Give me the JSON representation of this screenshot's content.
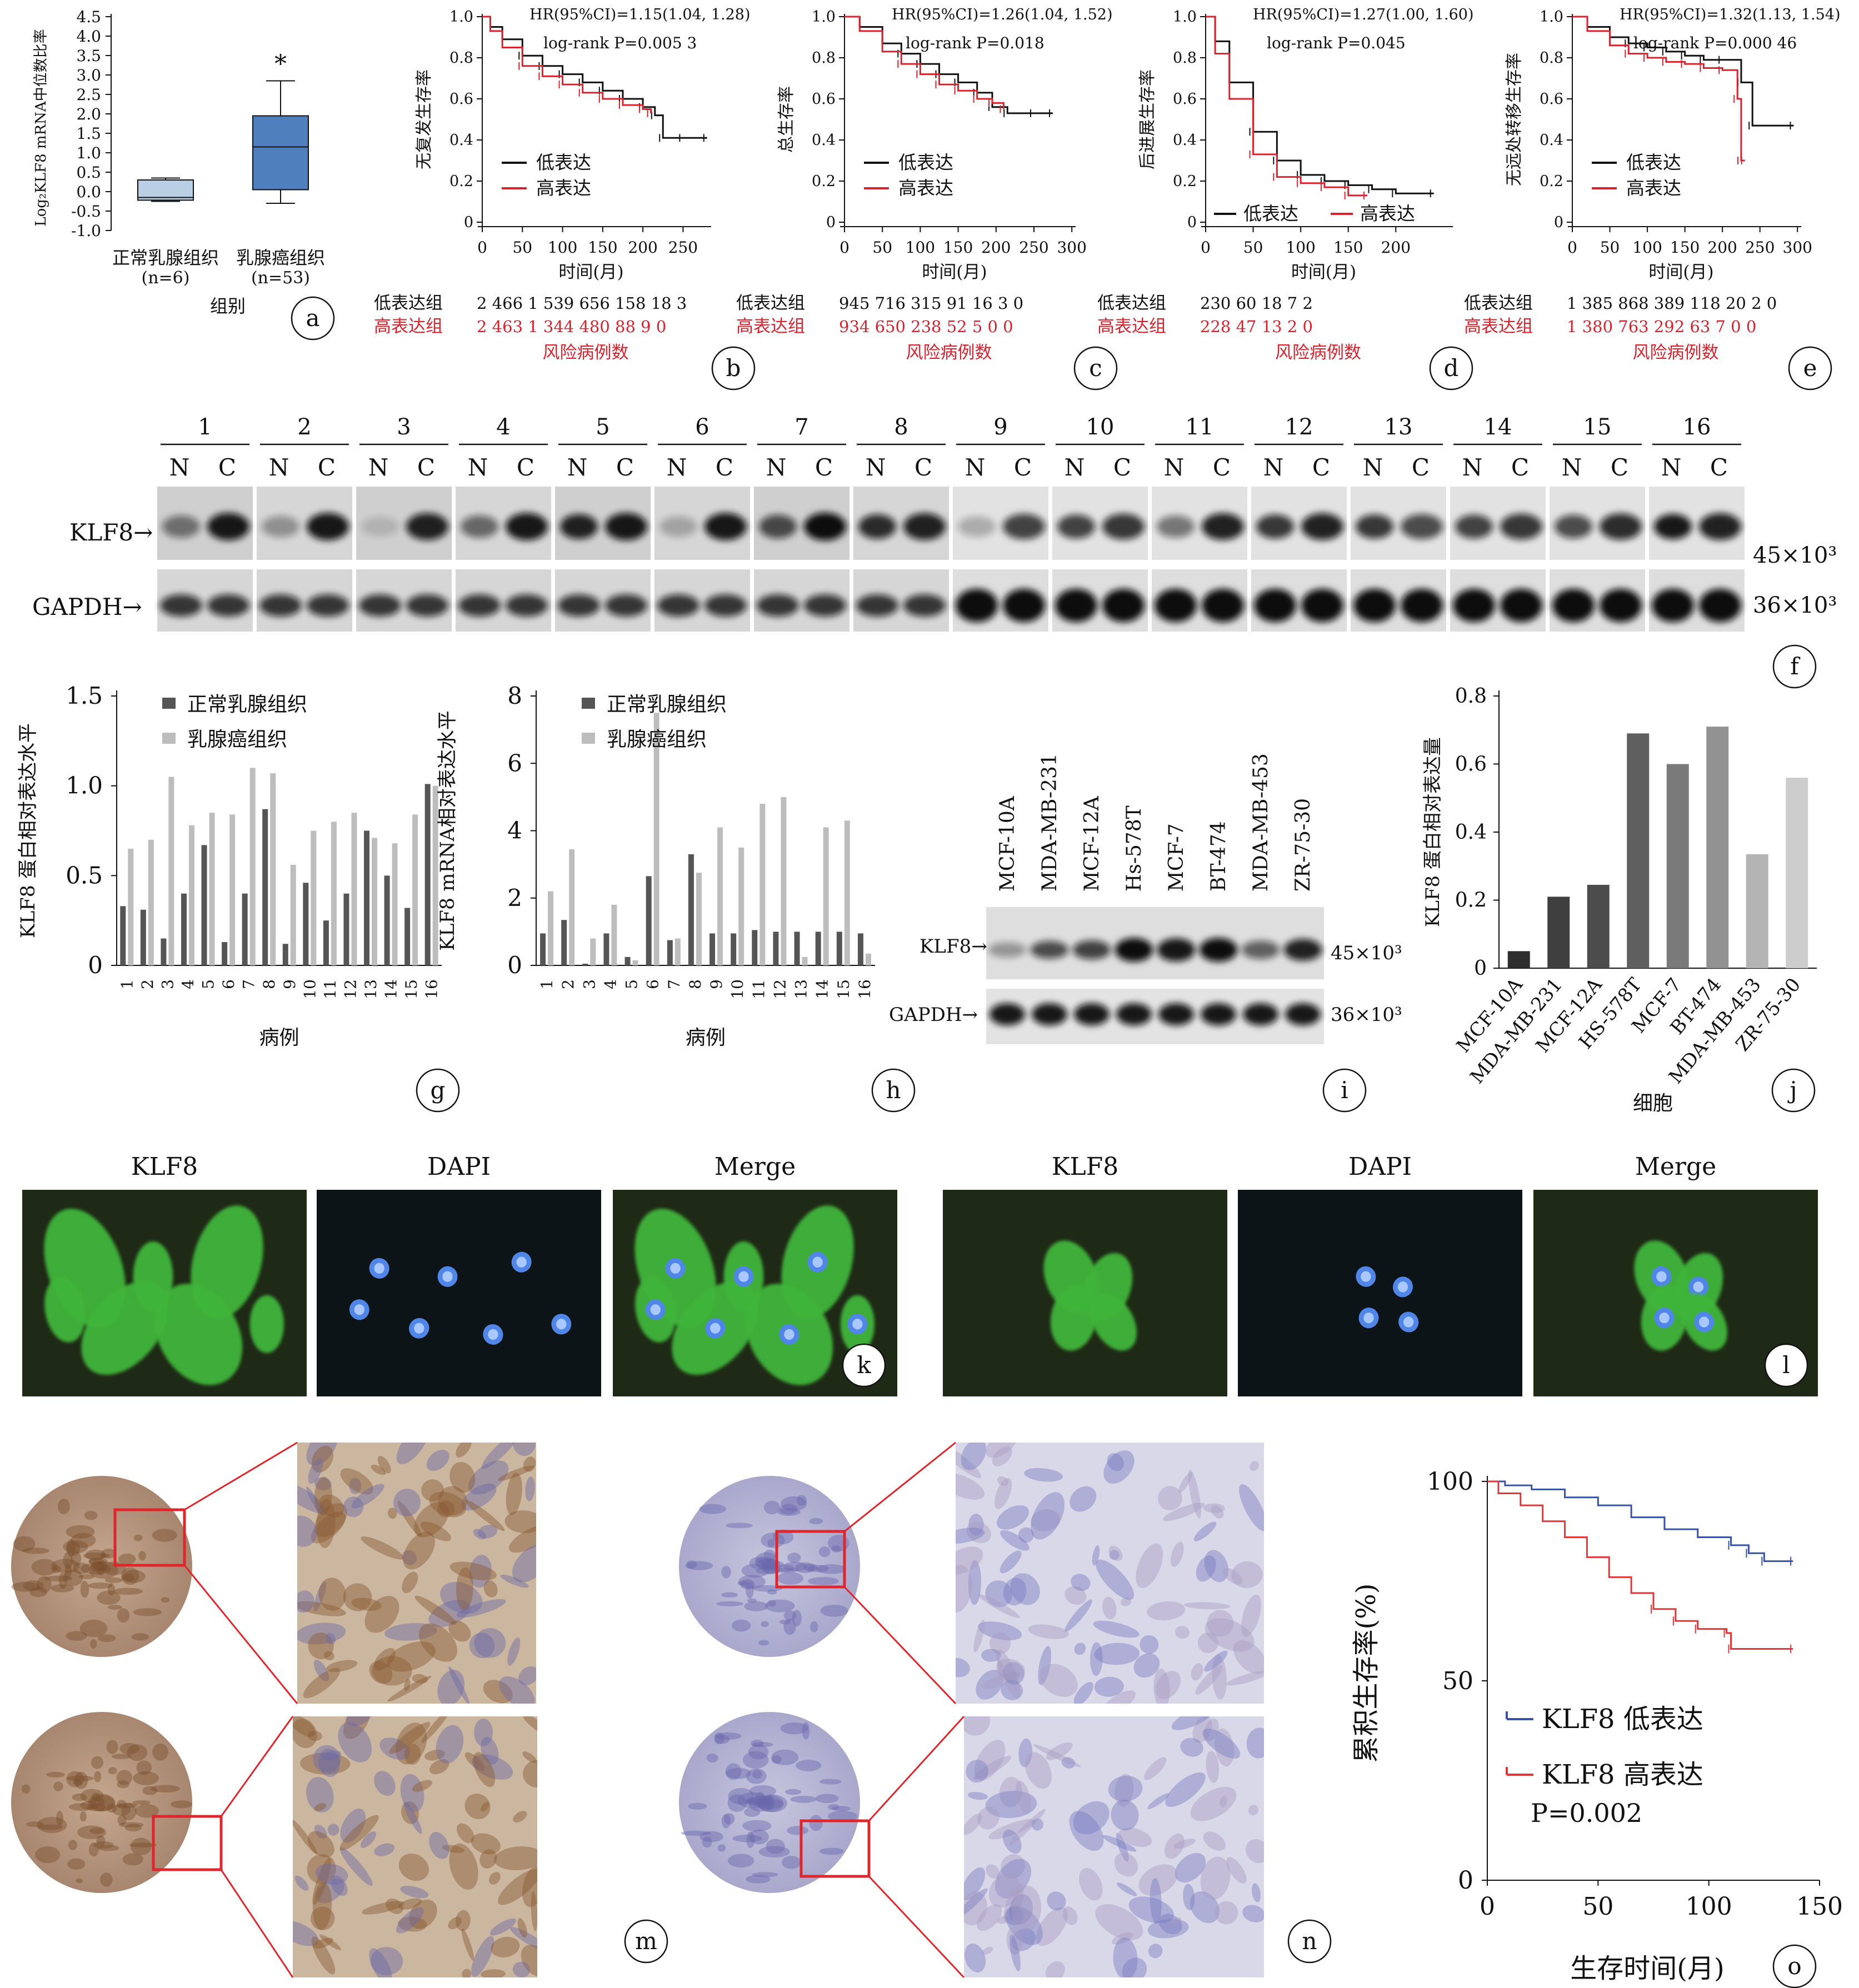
{
  "chart_data": [
    {
      "panel": "a",
      "type": "box",
      "ylabel": "Log₂KLF8 mRNA中位数比率",
      "xlabel": "组别",
      "yticks": [
        "4.5",
        "4.0",
        "3.5",
        "3.0",
        "2.5",
        "2.0",
        "1.5",
        "1.0",
        "0.5",
        "0.0",
        "-0.5",
        "-1.0"
      ],
      "ylim": [
        -1.0,
        4.5
      ],
      "significance": "*",
      "categories": [
        {
          "label": "正常乳腺组织",
          "n": "(n=6)",
          "min": -0.25,
          "q1": -0.22,
          "median": -0.15,
          "q3": 0.3,
          "max": 0.35,
          "color": "#b9cfe4"
        },
        {
          "label": "乳腺癌组织",
          "n": "(n=53)",
          "min": -0.3,
          "q1": 0.05,
          "median": 1.15,
          "q3": 1.95,
          "max": 2.85,
          "color": "#4f80bd"
        }
      ]
    },
    {
      "panel": "b",
      "type": "line",
      "ylabel": "无复发生存率",
      "xlabel": "时间(月)",
      "hr": "HR(95%CI)=1.15(1.04, 1.28)",
      "logrank": "log-rank P=0.005 3",
      "xticks": [
        "0",
        "50",
        "100",
        "150",
        "200",
        "250"
      ],
      "yticks": [
        "0",
        "0.2",
        "0.4",
        "0.6",
        "0.8",
        "1.0"
      ],
      "series": [
        {
          "name": "低表达",
          "color": "#111111",
          "x": [
            0,
            10,
            25,
            50,
            75,
            100,
            125,
            150,
            175,
            200,
            215,
            225,
            250,
            280
          ],
          "y": [
            1.0,
            0.95,
            0.89,
            0.81,
            0.76,
            0.72,
            0.68,
            0.64,
            0.6,
            0.56,
            0.52,
            0.41,
            0.41,
            0.41
          ]
        },
        {
          "name": "高表达",
          "color": "#d7232e",
          "x": [
            0,
            10,
            25,
            50,
            75,
            100,
            125,
            150,
            175,
            200,
            210
          ],
          "y": [
            1.0,
            0.93,
            0.85,
            0.76,
            0.71,
            0.67,
            0.63,
            0.6,
            0.57,
            0.55,
            0.53
          ]
        }
      ],
      "risk_label": "风险病例数",
      "risk_rows": [
        {
          "name": "低表达组",
          "values": "2 466  1 539 656  158  18  3"
        },
        {
          "name": "高表达组",
          "values": "2 463  1 344 480  88  9  0"
        }
      ]
    },
    {
      "panel": "c",
      "type": "line",
      "ylabel": "总生存率",
      "xlabel": "时间(月)",
      "hr": "HR(95%CI)=1.26(1.04, 1.52)",
      "logrank": "log-rank P=0.018",
      "xticks": [
        "0",
        "50",
        "100",
        "150",
        "200",
        "250",
        "300"
      ],
      "yticks": [
        "0",
        "0.2",
        "0.4",
        "0.6",
        "0.8",
        "1.0"
      ],
      "series": [
        {
          "name": "低表达",
          "color": "#111111",
          "x": [
            0,
            20,
            50,
            75,
            100,
            125,
            150,
            175,
            195,
            215,
            250,
            275
          ],
          "y": [
            1.0,
            0.95,
            0.87,
            0.82,
            0.77,
            0.72,
            0.68,
            0.63,
            0.56,
            0.53,
            0.53,
            0.53
          ]
        },
        {
          "name": "高表达",
          "color": "#d7232e",
          "x": [
            0,
            20,
            50,
            75,
            100,
            125,
            150,
            175,
            195,
            210
          ],
          "y": [
            1.0,
            0.93,
            0.83,
            0.77,
            0.72,
            0.67,
            0.64,
            0.6,
            0.58,
            0.55
          ]
        }
      ],
      "risk_label": "风险病例数",
      "risk_rows": [
        {
          "name": "低表达组",
          "values": "945  716  315  91  16  3  0"
        },
        {
          "name": "高表达组",
          "values": "934  650  238  52  5  0  0"
        }
      ]
    },
    {
      "panel": "d",
      "type": "line",
      "ylabel": "后进展生存率",
      "xlabel": "时间(月)",
      "hr": "HR(95%CI)=1.27(1.00, 1.60)",
      "logrank": "log-rank P=0.045",
      "xticks": [
        "0",
        "50",
        "100",
        "150",
        "200"
      ],
      "yticks": [
        "0",
        "0.2",
        "0.4",
        "0.6",
        "0.8",
        "1.0"
      ],
      "series": [
        {
          "name": "低表达",
          "color": "#111111",
          "x": [
            0,
            10,
            25,
            50,
            75,
            100,
            125,
            150,
            175,
            200,
            240
          ],
          "y": [
            1.0,
            0.88,
            0.68,
            0.44,
            0.3,
            0.23,
            0.2,
            0.18,
            0.16,
            0.14,
            0.14
          ]
        },
        {
          "name": "高表达",
          "color": "#d7232e",
          "x": [
            0,
            10,
            25,
            50,
            75,
            100,
            125,
            150,
            170
          ],
          "y": [
            1.0,
            0.82,
            0.6,
            0.33,
            0.22,
            0.19,
            0.17,
            0.13,
            0.13
          ]
        }
      ],
      "risk_label": "风险病例数",
      "risk_rows": [
        {
          "name": "低表达组",
          "values": "230  60  18  7  2"
        },
        {
          "name": "高表达组",
          "values": "228  47  13  2  0"
        }
      ]
    },
    {
      "panel": "e",
      "type": "line",
      "ylabel": "无远处转移生存率",
      "xlabel": "时间(月)",
      "hr": "HR(95%CI)=1.32(1.13, 1.54)",
      "logrank": "log-rank P=0.000 46",
      "xticks": [
        "0",
        "50",
        "100",
        "150",
        "200",
        "250",
        "300"
      ],
      "yticks": [
        "0",
        "0.2",
        "0.4",
        "0.6",
        "0.8",
        "1.0"
      ],
      "series": [
        {
          "name": "低表达",
          "color": "#111111",
          "x": [
            0,
            20,
            50,
            75,
            100,
            125,
            150,
            175,
            200,
            225,
            240,
            295
          ],
          "y": [
            1.0,
            0.95,
            0.9,
            0.87,
            0.85,
            0.83,
            0.81,
            0.79,
            0.79,
            0.68,
            0.47,
            0.47
          ]
        },
        {
          "name": "高表达",
          "color": "#d7232e",
          "x": [
            0,
            20,
            50,
            75,
            100,
            125,
            150,
            175,
            200,
            220,
            225,
            230
          ],
          "y": [
            1.0,
            0.93,
            0.86,
            0.82,
            0.8,
            0.78,
            0.77,
            0.75,
            0.74,
            0.6,
            0.3,
            0.3
          ]
        }
      ],
      "risk_label": "风险病例数",
      "risk_rows": [
        {
          "name": "低表达组",
          "values": "1 385 868  389  118  20  2  0"
        },
        {
          "name": "高表达组",
          "values": "1 380 763  292  63  7  0  0"
        }
      ]
    },
    {
      "panel": "f",
      "type": "blot",
      "lanes": [
        "1",
        "2",
        "3",
        "4",
        "5",
        "6",
        "7",
        "8",
        "9",
        "10",
        "11",
        "12",
        "13",
        "14",
        "15",
        "16"
      ],
      "sublanes": [
        "N",
        "C"
      ],
      "rows": [
        {
          "label": "KLF8→",
          "mw": "45×10³"
        },
        {
          "label": "GAPDH→",
          "mw": "36×10³"
        }
      ]
    },
    {
      "panel": "g",
      "type": "bar",
      "ylabel": "KLF8 蛋白相对表达水平",
      "xlabel": "病例",
      "categories": [
        "1",
        "2",
        "3",
        "4",
        "5",
        "6",
        "7",
        "8",
        "9",
        "10",
        "11",
        "12",
        "13",
        "14",
        "15",
        "16"
      ],
      "yticks": [
        "0",
        "0.5",
        "1.0",
        "1.5"
      ],
      "ylim": [
        0,
        1.5
      ],
      "series": [
        {
          "name": "正常乳腺组织",
          "color": "#555555",
          "values": [
            0.33,
            0.31,
            0.15,
            0.4,
            0.67,
            0.13,
            0.4,
            0.87,
            0.12,
            0.46,
            0.25,
            0.4,
            0.75,
            0.5,
            0.32,
            1.01
          ]
        },
        {
          "name": "乳腺癌组织",
          "color": "#bdbdbd",
          "values": [
            0.65,
            0.7,
            1.05,
            0.78,
            0.85,
            0.84,
            1.1,
            1.07,
            0.56,
            0.75,
            0.8,
            0.85,
            0.71,
            0.68,
            0.84,
            1.0
          ]
        }
      ]
    },
    {
      "panel": "h",
      "type": "bar",
      "ylabel": "KLF8 mRNA相对表达水平",
      "xlabel": "病例",
      "categories": [
        "1",
        "2",
        "3",
        "4",
        "5",
        "6",
        "7",
        "8",
        "9",
        "10",
        "11",
        "12",
        "13",
        "14",
        "15",
        "16"
      ],
      "yticks": [
        "0",
        "2",
        "4",
        "6",
        "8"
      ],
      "ylim": [
        0,
        8
      ],
      "series": [
        {
          "name": "正常乳腺组织",
          "color": "#555555",
          "values": [
            0.95,
            1.35,
            0.05,
            0.95,
            0.25,
            2.65,
            0.75,
            3.3,
            0.95,
            0.95,
            1.05,
            1.0,
            1.0,
            1.0,
            1.0,
            0.95
          ]
        },
        {
          "name": "乳腺癌组织",
          "color": "#bdbdbd",
          "values": [
            2.2,
            3.45,
            0.8,
            1.8,
            0.15,
            7.5,
            0.8,
            2.75,
            4.1,
            3.5,
            4.8,
            5.0,
            0.25,
            4.1,
            4.3,
            0.35
          ]
        }
      ]
    },
    {
      "panel": "i",
      "type": "blot",
      "lanes": [
        "MCF-10A",
        "MDA-MB-231",
        "MCF-12A",
        "Hs-578T",
        "MCF-7",
        "BT-474",
        "MDA-MB-453",
        "ZR-75-30"
      ],
      "rows": [
        {
          "label": "KLF8→",
          "mw": "45×10³"
        },
        {
          "label": "GAPDH→",
          "mw": "36×10³"
        }
      ]
    },
    {
      "panel": "j",
      "type": "bar",
      "ylabel": "KLF8 蛋白相对表达量",
      "xlabel": "细胞",
      "categories": [
        "MCF-10A",
        "MDA-MB-231",
        "MCF-12A",
        "HS-578T",
        "MCF-7",
        "BT-474",
        "MDA-MB-453",
        "ZR-75-30"
      ],
      "yticks": [
        "0",
        "0.2",
        "0.4",
        "0.6",
        "0.8"
      ],
      "ylim": [
        0,
        0.8
      ],
      "values": [
        0.05,
        0.21,
        0.245,
        0.69,
        0.6,
        0.71,
        0.335,
        0.56
      ],
      "colors": [
        "#2e2e2e",
        "#3f3f3f",
        "#4c4c4c",
        "#5f5f5f",
        "#7a7a7a",
        "#929292",
        "#b4b4b4",
        "#cdcdcd"
      ]
    },
    {
      "panel": "o",
      "type": "line",
      "ylabel": "累积生存率(%)",
      "xlabel": "生存时间(月)",
      "xticks": [
        "0",
        "50",
        "100",
        "150"
      ],
      "yticks": [
        "0",
        "50",
        "100"
      ],
      "pvalue": "P=0.002",
      "series": [
        {
          "name": "KLF8 低表达",
          "color": "#3953a4",
          "x": [
            0,
            8,
            20,
            35,
            50,
            65,
            80,
            95,
            110,
            118,
            125,
            138
          ],
          "y": [
            100,
            99,
            98,
            96,
            94,
            91,
            88,
            86,
            84,
            82,
            80,
            80
          ]
        },
        {
          "name": "KLF8 高表达",
          "color": "#e0363a",
          "x": [
            0,
            5,
            15,
            25,
            35,
            45,
            55,
            65,
            75,
            85,
            95,
            108,
            110,
            138
          ],
          "y": [
            100,
            97,
            94,
            90,
            86,
            81,
            76,
            72,
            68,
            65,
            63,
            62,
            58,
            58
          ]
        }
      ]
    }
  ],
  "panel_letters": [
    "a",
    "b",
    "c",
    "d",
    "e",
    "f",
    "g",
    "h",
    "i",
    "j",
    "k",
    "l",
    "m",
    "n",
    "o"
  ],
  "fluorescence": {
    "k": [
      "KLF8",
      "DAPI",
      "Merge"
    ],
    "l": [
      "KLF8",
      "DAPI",
      "Merge"
    ]
  }
}
